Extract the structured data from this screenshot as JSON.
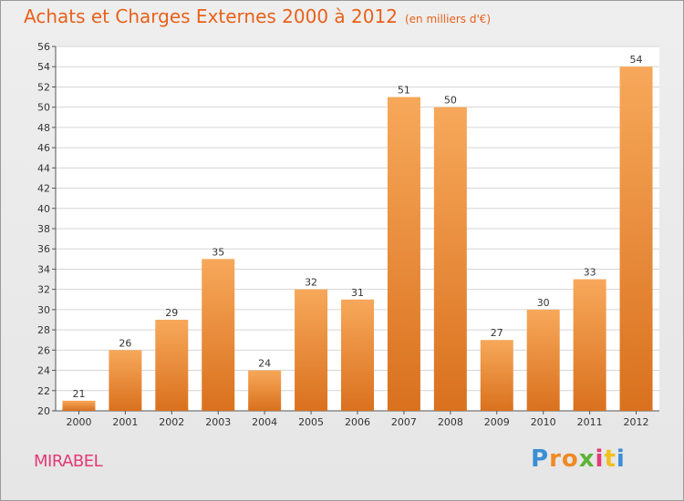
{
  "header": {
    "title": "Achats et Charges Externes 2000 à 2012",
    "subtitle": "(en milliers d'€)"
  },
  "footer": {
    "commune": "MIRABEL",
    "logo": "Proxiti",
    "logo_colors": [
      "#3a8fd6",
      "#f08a24",
      "#f08a24",
      "#5db337",
      "#e33a77",
      "#f0c020",
      "#3a8fd6"
    ]
  },
  "colors": {
    "title": "#e8611a",
    "commune": "#e33a77",
    "bar_top": "#f7a85a",
    "bar_bottom": "#d9711e"
  },
  "chart_data": {
    "type": "bar",
    "categories": [
      "2000",
      "2001",
      "2002",
      "2003",
      "2004",
      "2005",
      "2006",
      "2007",
      "2008",
      "2009",
      "2010",
      "2011",
      "2012"
    ],
    "values": [
      21,
      26,
      29,
      35,
      24,
      32,
      31,
      51,
      50,
      27,
      30,
      33,
      54
    ],
    "ylim": [
      20,
      56
    ],
    "yticks": [
      20,
      22,
      24,
      26,
      28,
      30,
      32,
      34,
      36,
      38,
      40,
      42,
      44,
      46,
      48,
      50,
      52,
      54,
      56
    ],
    "grid": true
  }
}
